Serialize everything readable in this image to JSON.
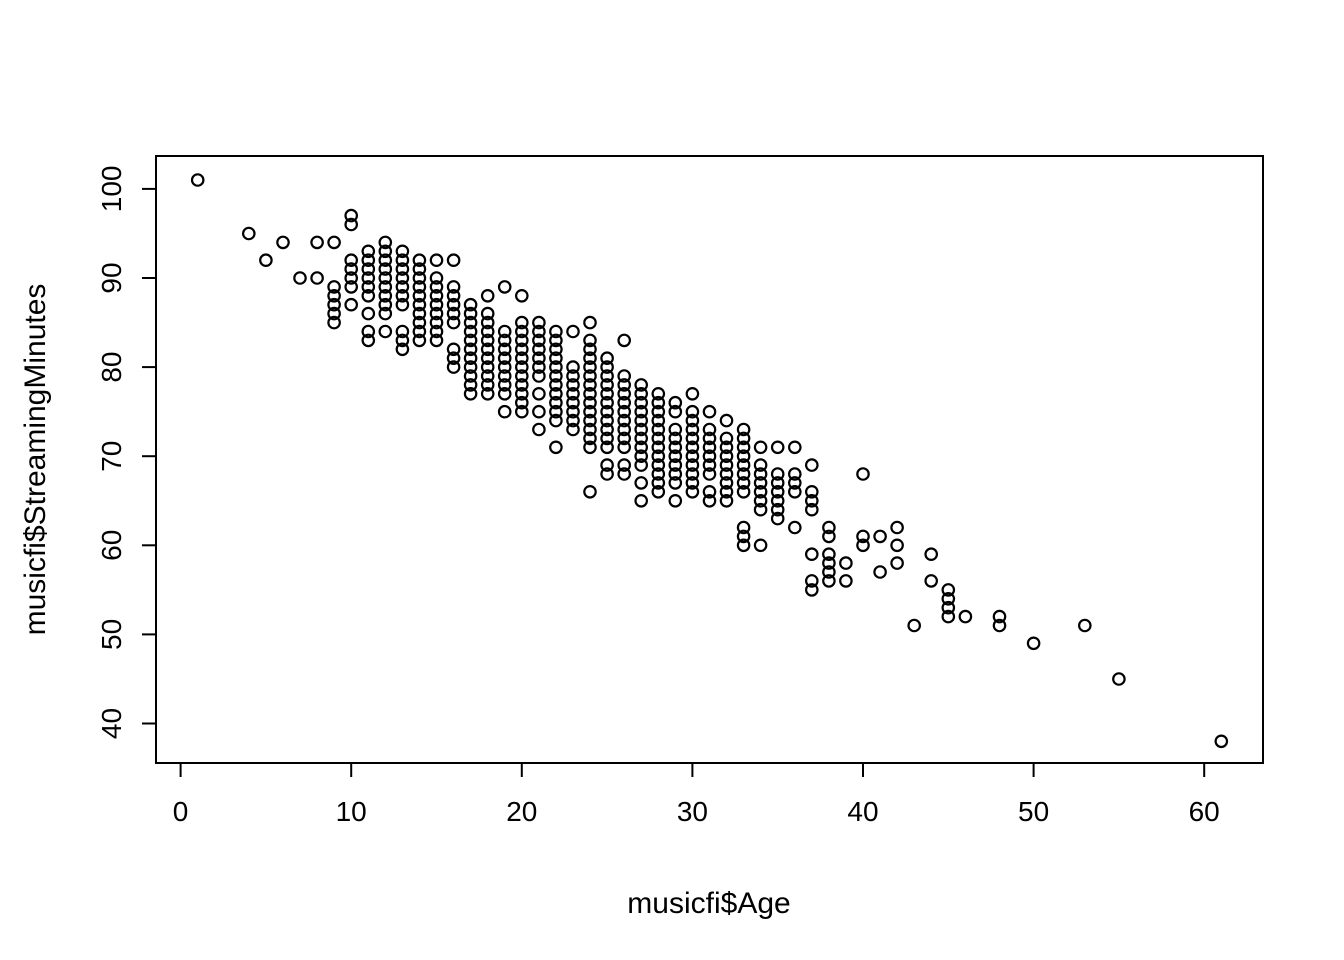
{
  "chart_data": {
    "type": "scatter",
    "title": "",
    "xlabel": "musicfi$Age",
    "ylabel": "musicfi$StreamingMinutes",
    "x_ticks": [
      0,
      10,
      20,
      30,
      40,
      50,
      60
    ],
    "y_ticks": [
      40,
      50,
      60,
      70,
      80,
      90,
      100
    ],
    "xlim": [
      -1.4,
      63.4
    ],
    "ylim": [
      35.5,
      103.5
    ],
    "grid": false,
    "legend": "none",
    "marker": "open-circle",
    "marker_color": "#000000",
    "background_color": "#ffffff",
    "points": [
      [
        1,
        101
      ],
      [
        4,
        95
      ],
      [
        5,
        92
      ],
      [
        6,
        94
      ],
      [
        7,
        90
      ],
      [
        8,
        94
      ],
      [
        8,
        90
      ],
      [
        9,
        94
      ],
      [
        9,
        89
      ],
      [
        9,
        88
      ],
      [
        9,
        87
      ],
      [
        9,
        86
      ],
      [
        9,
        85
      ],
      [
        10,
        97
      ],
      [
        10,
        96
      ],
      [
        10,
        92
      ],
      [
        10,
        91
      ],
      [
        10,
        90
      ],
      [
        10,
        89
      ],
      [
        10,
        87
      ],
      [
        11,
        93
      ],
      [
        11,
        92
      ],
      [
        11,
        91
      ],
      [
        11,
        90
      ],
      [
        11,
        89
      ],
      [
        11,
        88
      ],
      [
        11,
        86
      ],
      [
        11,
        84
      ],
      [
        11,
        83
      ],
      [
        12,
        94
      ],
      [
        12,
        93
      ],
      [
        12,
        92
      ],
      [
        12,
        91
      ],
      [
        12,
        90
      ],
      [
        12,
        89
      ],
      [
        12,
        88
      ],
      [
        12,
        87
      ],
      [
        12,
        86
      ],
      [
        12,
        84
      ],
      [
        13,
        93
      ],
      [
        13,
        92
      ],
      [
        13,
        91
      ],
      [
        13,
        90
      ],
      [
        13,
        89
      ],
      [
        13,
        88
      ],
      [
        13,
        87
      ],
      [
        13,
        84
      ],
      [
        13,
        83
      ],
      [
        13,
        82
      ],
      [
        14,
        92
      ],
      [
        14,
        91
      ],
      [
        14,
        90
      ],
      [
        14,
        89
      ],
      [
        14,
        88
      ],
      [
        14,
        87
      ],
      [
        14,
        86
      ],
      [
        14,
        85
      ],
      [
        14,
        84
      ],
      [
        14,
        83
      ],
      [
        15,
        92
      ],
      [
        15,
        90
      ],
      [
        15,
        89
      ],
      [
        15,
        88
      ],
      [
        15,
        87
      ],
      [
        15,
        86
      ],
      [
        15,
        85
      ],
      [
        15,
        84
      ],
      [
        15,
        83
      ],
      [
        16,
        92
      ],
      [
        16,
        89
      ],
      [
        16,
        88
      ],
      [
        16,
        87
      ],
      [
        16,
        86
      ],
      [
        16,
        85
      ],
      [
        16,
        82
      ],
      [
        16,
        81
      ],
      [
        16,
        80
      ],
      [
        17,
        87
      ],
      [
        17,
        86
      ],
      [
        17,
        85
      ],
      [
        17,
        84
      ],
      [
        17,
        83
      ],
      [
        17,
        82
      ],
      [
        17,
        81
      ],
      [
        17,
        80
      ],
      [
        17,
        79
      ],
      [
        17,
        78
      ],
      [
        17,
        77
      ],
      [
        18,
        88
      ],
      [
        18,
        86
      ],
      [
        18,
        85
      ],
      [
        18,
        84
      ],
      [
        18,
        83
      ],
      [
        18,
        82
      ],
      [
        18,
        81
      ],
      [
        18,
        80
      ],
      [
        18,
        79
      ],
      [
        18,
        78
      ],
      [
        18,
        77
      ],
      [
        19,
        89
      ],
      [
        19,
        84
      ],
      [
        19,
        83
      ],
      [
        19,
        82
      ],
      [
        19,
        81
      ],
      [
        19,
        80
      ],
      [
        19,
        79
      ],
      [
        19,
        78
      ],
      [
        19,
        77
      ],
      [
        19,
        75
      ],
      [
        20,
        88
      ],
      [
        20,
        85
      ],
      [
        20,
        84
      ],
      [
        20,
        83
      ],
      [
        20,
        82
      ],
      [
        20,
        81
      ],
      [
        20,
        80
      ],
      [
        20,
        79
      ],
      [
        20,
        78
      ],
      [
        20,
        77
      ],
      [
        20,
        76
      ],
      [
        20,
        75
      ],
      [
        21,
        85
      ],
      [
        21,
        84
      ],
      [
        21,
        83
      ],
      [
        21,
        82
      ],
      [
        21,
        81
      ],
      [
        21,
        80
      ],
      [
        21,
        79
      ],
      [
        21,
        77
      ],
      [
        21,
        75
      ],
      [
        21,
        73
      ],
      [
        22,
        84
      ],
      [
        22,
        83
      ],
      [
        22,
        82
      ],
      [
        22,
        81
      ],
      [
        22,
        80
      ],
      [
        22,
        79
      ],
      [
        22,
        78
      ],
      [
        22,
        77
      ],
      [
        22,
        76
      ],
      [
        22,
        75
      ],
      [
        22,
        74
      ],
      [
        22,
        71
      ],
      [
        23,
        84
      ],
      [
        23,
        80
      ],
      [
        23,
        79
      ],
      [
        23,
        78
      ],
      [
        23,
        77
      ],
      [
        23,
        76
      ],
      [
        23,
        75
      ],
      [
        23,
        74
      ],
      [
        23,
        73
      ],
      [
        24,
        85
      ],
      [
        24,
        83
      ],
      [
        24,
        82
      ],
      [
        24,
        81
      ],
      [
        24,
        80
      ],
      [
        24,
        79
      ],
      [
        24,
        78
      ],
      [
        24,
        77
      ],
      [
        24,
        76
      ],
      [
        24,
        75
      ],
      [
        24,
        74
      ],
      [
        24,
        73
      ],
      [
        24,
        72
      ],
      [
        24,
        71
      ],
      [
        24,
        66
      ],
      [
        25,
        81
      ],
      [
        25,
        80
      ],
      [
        25,
        79
      ],
      [
        25,
        78
      ],
      [
        25,
        77
      ],
      [
        25,
        76
      ],
      [
        25,
        75
      ],
      [
        25,
        74
      ],
      [
        25,
        73
      ],
      [
        25,
        72
      ],
      [
        25,
        71
      ],
      [
        25,
        69
      ],
      [
        25,
        68
      ],
      [
        26,
        83
      ],
      [
        26,
        79
      ],
      [
        26,
        78
      ],
      [
        26,
        77
      ],
      [
        26,
        76
      ],
      [
        26,
        75
      ],
      [
        26,
        74
      ],
      [
        26,
        73
      ],
      [
        26,
        72
      ],
      [
        26,
        71
      ],
      [
        26,
        69
      ],
      [
        26,
        68
      ],
      [
        27,
        78
      ],
      [
        27,
        77
      ],
      [
        27,
        76
      ],
      [
        27,
        75
      ],
      [
        27,
        74
      ],
      [
        27,
        73
      ],
      [
        27,
        72
      ],
      [
        27,
        71
      ],
      [
        27,
        70
      ],
      [
        27,
        69
      ],
      [
        27,
        67
      ],
      [
        27,
        65
      ],
      [
        28,
        77
      ],
      [
        28,
        76
      ],
      [
        28,
        75
      ],
      [
        28,
        74
      ],
      [
        28,
        73
      ],
      [
        28,
        72
      ],
      [
        28,
        71
      ],
      [
        28,
        70
      ],
      [
        28,
        69
      ],
      [
        28,
        68
      ],
      [
        28,
        67
      ],
      [
        28,
        66
      ],
      [
        29,
        76
      ],
      [
        29,
        75
      ],
      [
        29,
        73
      ],
      [
        29,
        72
      ],
      [
        29,
        71
      ],
      [
        29,
        70
      ],
      [
        29,
        69
      ],
      [
        29,
        68
      ],
      [
        29,
        67
      ],
      [
        29,
        65
      ],
      [
        30,
        77
      ],
      [
        30,
        75
      ],
      [
        30,
        74
      ],
      [
        30,
        73
      ],
      [
        30,
        72
      ],
      [
        30,
        71
      ],
      [
        30,
        70
      ],
      [
        30,
        69
      ],
      [
        30,
        68
      ],
      [
        30,
        67
      ],
      [
        30,
        66
      ],
      [
        31,
        75
      ],
      [
        31,
        73
      ],
      [
        31,
        72
      ],
      [
        31,
        71
      ],
      [
        31,
        70
      ],
      [
        31,
        69
      ],
      [
        31,
        68
      ],
      [
        31,
        66
      ],
      [
        31,
        65
      ],
      [
        32,
        74
      ],
      [
        32,
        72
      ],
      [
        32,
        71
      ],
      [
        32,
        70
      ],
      [
        32,
        69
      ],
      [
        32,
        68
      ],
      [
        32,
        67
      ],
      [
        32,
        66
      ],
      [
        32,
        65
      ],
      [
        33,
        73
      ],
      [
        33,
        72
      ],
      [
        33,
        71
      ],
      [
        33,
        70
      ],
      [
        33,
        69
      ],
      [
        33,
        68
      ],
      [
        33,
        67
      ],
      [
        33,
        66
      ],
      [
        33,
        62
      ],
      [
        33,
        61
      ],
      [
        33,
        60
      ],
      [
        34,
        71
      ],
      [
        34,
        69
      ],
      [
        34,
        68
      ],
      [
        34,
        67
      ],
      [
        34,
        66
      ],
      [
        34,
        65
      ],
      [
        34,
        64
      ],
      [
        34,
        60
      ],
      [
        35,
        71
      ],
      [
        35,
        68
      ],
      [
        35,
        67
      ],
      [
        35,
        66
      ],
      [
        35,
        65
      ],
      [
        35,
        64
      ],
      [
        35,
        63
      ],
      [
        36,
        71
      ],
      [
        36,
        68
      ],
      [
        36,
        67
      ],
      [
        36,
        66
      ],
      [
        36,
        62
      ],
      [
        37,
        69
      ],
      [
        37,
        66
      ],
      [
        37,
        65
      ],
      [
        37,
        64
      ],
      [
        37,
        59
      ],
      [
        37,
        56
      ],
      [
        37,
        55
      ],
      [
        38,
        62
      ],
      [
        38,
        61
      ],
      [
        38,
        59
      ],
      [
        38,
        58
      ],
      [
        38,
        57
      ],
      [
        38,
        56
      ],
      [
        39,
        58
      ],
      [
        39,
        56
      ],
      [
        40,
        68
      ],
      [
        40,
        61
      ],
      [
        40,
        60
      ],
      [
        41,
        61
      ],
      [
        41,
        57
      ],
      [
        42,
        62
      ],
      [
        42,
        60
      ],
      [
        42,
        58
      ],
      [
        43,
        51
      ],
      [
        44,
        59
      ],
      [
        44,
        56
      ],
      [
        45,
        55
      ],
      [
        45,
        54
      ],
      [
        45,
        53
      ],
      [
        45,
        52
      ],
      [
        46,
        52
      ],
      [
        48,
        52
      ],
      [
        48,
        51
      ],
      [
        50,
        49
      ],
      [
        53,
        51
      ],
      [
        55,
        45
      ],
      [
        61,
        38
      ]
    ]
  }
}
